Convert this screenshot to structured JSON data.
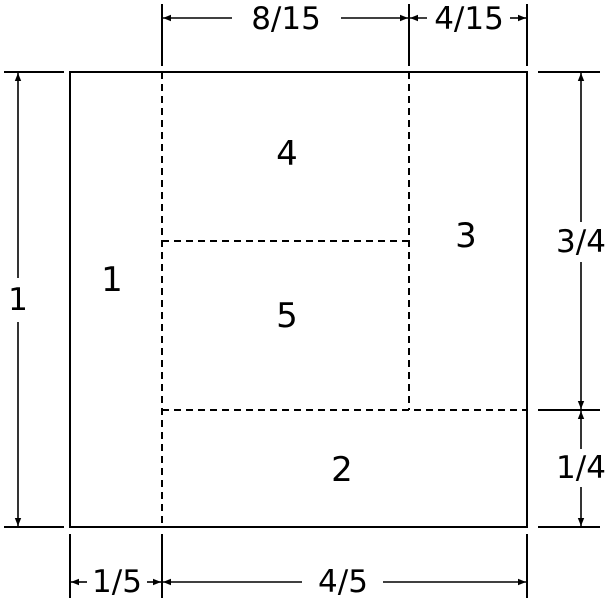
{
  "regions": {
    "r1": "1",
    "r2": "2",
    "r3": "3",
    "r4": "4",
    "r5": "5"
  },
  "dimensions": {
    "top_left": "8/15",
    "top_right": "4/15",
    "left_height": "1",
    "right_upper": "3/4",
    "right_lower": "1/4",
    "bottom_left": "1/5",
    "bottom_right": "4/5"
  }
}
